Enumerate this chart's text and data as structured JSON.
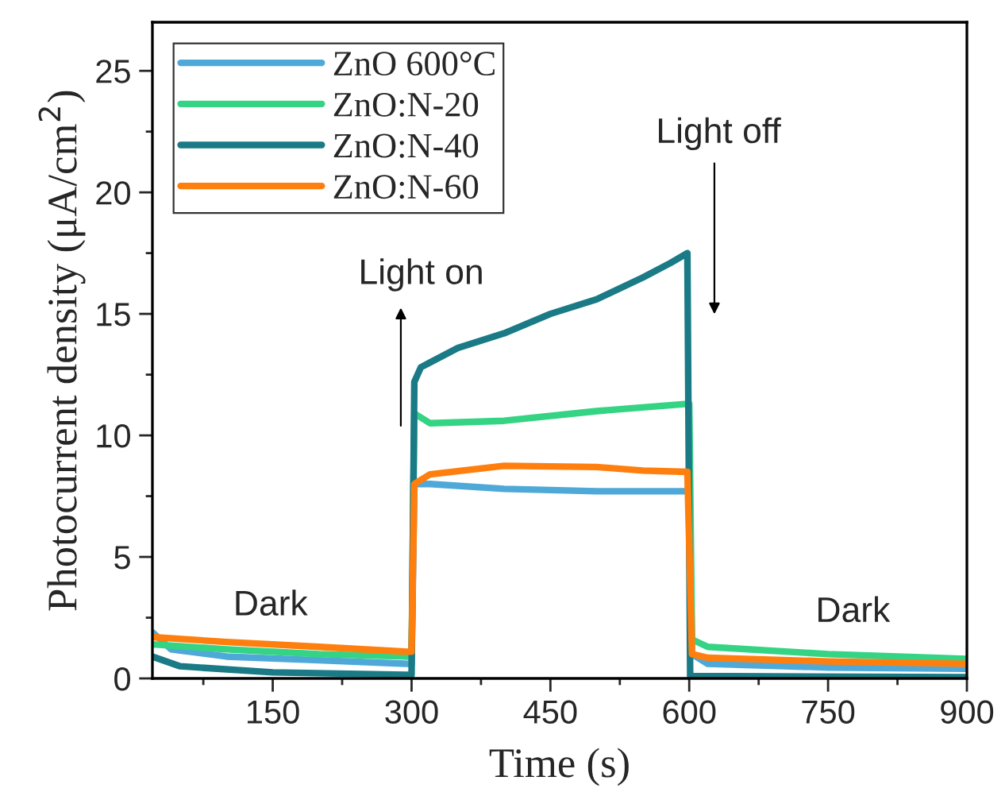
{
  "chart_data": {
    "type": "line",
    "xlabel": "Time (s)",
    "ylabel": "Photocurrent density (μA/cm$^{2}$)",
    "xlim": [
      20,
      900
    ],
    "xticks": [
      {
        "value": 75,
        "label": null
      },
      150,
      {
        "value": 225,
        "label": null
      },
      300,
      {
        "value": 375,
        "label": null
      },
      450,
      {
        "value": 525,
        "label": null
      },
      600,
      {
        "value": 675,
        "label": null
      },
      750,
      {
        "value": 825,
        "label": null
      },
      900
    ],
    "ylim": [
      0,
      27
    ],
    "yticks": [
      0,
      {
        "value": 2.5,
        "label": null
      },
      5,
      {
        "value": 7.5,
        "label": null
      },
      10,
      {
        "value": 12.5,
        "label": null
      },
      15,
      {
        "value": 17.5,
        "label": null
      },
      20,
      {
        "value": 22.5,
        "label": null
      },
      25
    ],
    "grid": false,
    "legend": "top left",
    "marker": "none",
    "line_style": "solid",
    "series": [
      {
        "name": "ZnO 600°C",
        "color": "#4fa9d8",
        "x": [
          20,
          40,
          100,
          200,
          295,
          300,
          303,
          320,
          400,
          500,
          598,
          600,
          603,
          620,
          750,
          900
        ],
        "values": [
          1.9,
          1.2,
          0.9,
          0.75,
          0.6,
          0.6,
          8.0,
          8.0,
          7.8,
          7.7,
          7.7,
          7.7,
          1.0,
          0.6,
          0.45,
          0.4
        ]
      },
      {
        "name": "ZnO:N-20",
        "color": "#34d484",
        "x": [
          20,
          100,
          200,
          295,
          300,
          303,
          320,
          400,
          500,
          598,
          600,
          603,
          620,
          750,
          900
        ],
        "values": [
          1.4,
          1.2,
          1.0,
          0.9,
          0.9,
          10.9,
          10.5,
          10.6,
          11.0,
          11.3,
          11.3,
          1.6,
          1.3,
          1.0,
          0.8
        ]
      },
      {
        "name": "ZnO:N-40",
        "color": "#1a7a85",
        "x": [
          20,
          50,
          150,
          295,
          300,
          303,
          310,
          320,
          350,
          400,
          450,
          500,
          550,
          580,
          598,
          601,
          900
        ],
        "values": [
          0.9,
          0.5,
          0.25,
          0.15,
          0.15,
          12.2,
          12.8,
          13.0,
          13.6,
          14.2,
          15.0,
          15.6,
          16.5,
          17.1,
          17.5,
          0.1,
          0.05
        ]
      },
      {
        "name": "ZnO:N-60",
        "color": "#ff7f0e",
        "x": [
          20,
          100,
          200,
          295,
          300,
          303,
          320,
          400,
          500,
          550,
          598,
          603,
          620,
          750,
          900
        ],
        "values": [
          1.7,
          1.5,
          1.3,
          1.1,
          1.1,
          8.0,
          8.4,
          8.75,
          8.7,
          8.55,
          8.5,
          1.0,
          0.85,
          0.7,
          0.6
        ]
      }
    ],
    "annotations": [
      "Light on",
      "Light off",
      "Dark",
      "Dark"
    ]
  }
}
